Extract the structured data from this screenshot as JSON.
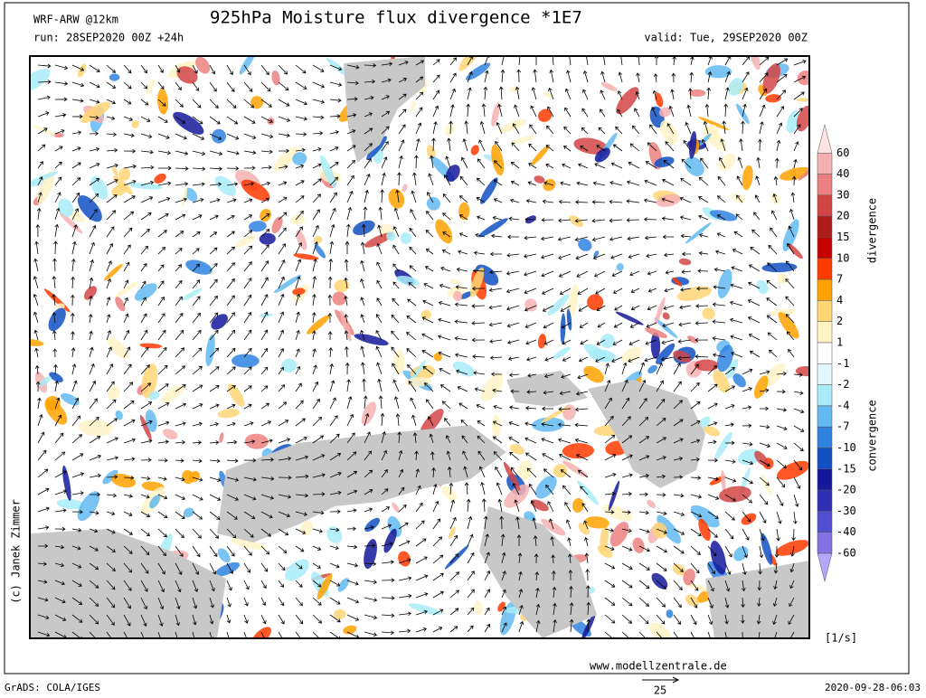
{
  "header": {
    "model": "WRF-ARW @12km",
    "title": "925hPa Moisture flux divergence *1E7",
    "run": "run: 28SEP2020 00Z +24h",
    "valid": "valid: Tue, 29SEP2020 00Z"
  },
  "colorbar": {
    "levels": [
      "60",
      "40",
      "30",
      "20",
      "15",
      "10",
      "7",
      "4",
      "2",
      "1",
      "-1",
      "-2",
      "-4",
      "-7",
      "-10",
      "-15",
      "-20",
      "-30",
      "-40",
      "-60"
    ],
    "colors": [
      "#fde2e2",
      "#f6b0b0",
      "#ec8080",
      "#d24545",
      "#ae1c1c",
      "#c60000",
      "#ff3a00",
      "#ffa200",
      "#ffd576",
      "#fff3c6",
      "#ffffff",
      "#e2f8ff",
      "#a8ecf8",
      "#62baf0",
      "#2f82e0",
      "#1050c2",
      "#14189a",
      "#3030b4",
      "#5250d2",
      "#8272e2",
      "#b4a6f8"
    ],
    "divergence_label": "divergence",
    "convergence_label": "convergence",
    "units": "[1/s]"
  },
  "copyright": "(c) Janek Zimmer",
  "website": "www.modellzentrale.de",
  "footer": {
    "software": "GrADS: COLA/IGES",
    "vector_scale": "25",
    "timestamp": "2020-09-28-06:03"
  }
}
